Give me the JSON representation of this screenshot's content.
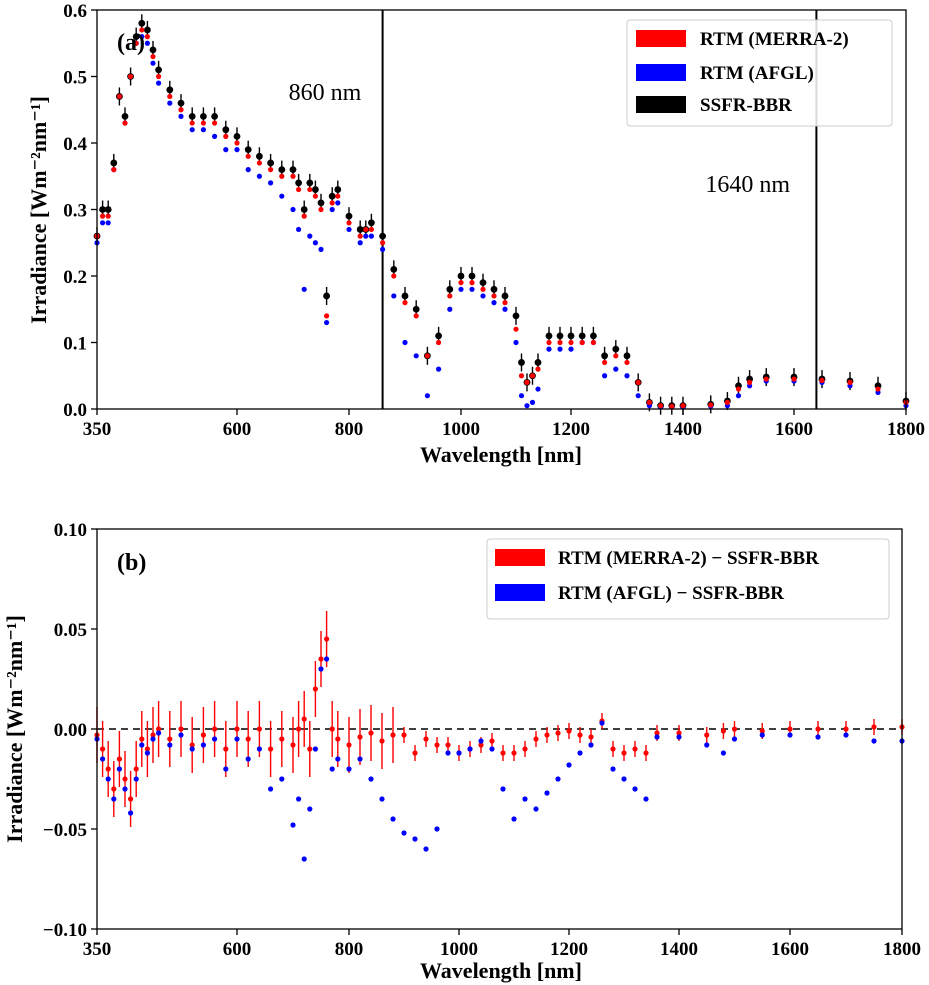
{
  "chart_data": [
    {
      "panel_label": "(a)",
      "type": "scatter",
      "xlabel": "Wavelength [nm]",
      "ylabel": "Irradiance [Wm⁻²nm⁻¹]",
      "xlim": [
        350,
        1800
      ],
      "ylim": [
        0.0,
        0.6
      ],
      "x_ticks": [
        "350",
        "600",
        "800",
        "1000",
        "1200",
        "1400",
        "1600",
        "1800"
      ],
      "y_ticks": [
        "0.0",
        "0.1",
        "0.2",
        "0.3",
        "0.4",
        "0.5",
        "0.6"
      ],
      "legend_position": "top-right",
      "vlines": [
        {
          "x": 860,
          "label": "860 nm"
        },
        {
          "x": 1640,
          "label": "1640 nm"
        }
      ],
      "series": [
        {
          "name": "RTM (MERRA-2)",
          "color": "#ff0000",
          "x": [
            350,
            360,
            370,
            380,
            390,
            400,
            410,
            420,
            430,
            440,
            450,
            460,
            480,
            500,
            520,
            540,
            560,
            580,
            600,
            620,
            640,
            660,
            680,
            700,
            710,
            720,
            730,
            740,
            750,
            760,
            770,
            780,
            800,
            820,
            830,
            840,
            860,
            880,
            900,
            920,
            940,
            960,
            980,
            1000,
            1020,
            1040,
            1060,
            1080,
            1100,
            1110,
            1120,
            1130,
            1140,
            1160,
            1180,
            1200,
            1220,
            1240,
            1260,
            1280,
            1300,
            1320,
            1340,
            1360,
            1380,
            1400,
            1450,
            1480,
            1500,
            1520,
            1550,
            1600,
            1650,
            1700,
            1750,
            1800
          ],
          "y": [
            0.26,
            0.29,
            0.29,
            0.36,
            0.47,
            0.43,
            0.5,
            0.55,
            0.57,
            0.56,
            0.53,
            0.5,
            0.47,
            0.45,
            0.43,
            0.43,
            0.43,
            0.41,
            0.4,
            0.38,
            0.37,
            0.36,
            0.35,
            0.35,
            0.33,
            0.29,
            0.33,
            0.32,
            0.3,
            0.14,
            0.31,
            0.32,
            0.28,
            0.26,
            0.27,
            0.27,
            0.25,
            0.2,
            0.16,
            0.14,
            0.08,
            0.1,
            0.17,
            0.19,
            0.19,
            0.18,
            0.17,
            0.16,
            0.12,
            0.05,
            0.04,
            0.05,
            0.06,
            0.1,
            0.1,
            0.1,
            0.1,
            0.1,
            0.07,
            0.08,
            0.07,
            0.04,
            0.01,
            0.005,
            0.004,
            0.005,
            0.006,
            0.01,
            0.03,
            0.04,
            0.045,
            0.045,
            0.043,
            0.04,
            0.03,
            0.01
          ]
        },
        {
          "name": "RTM (AFGL)",
          "color": "#0000ff",
          "x": [
            350,
            360,
            370,
            380,
            390,
            400,
            410,
            420,
            430,
            440,
            450,
            460,
            480,
            500,
            520,
            540,
            560,
            580,
            600,
            620,
            640,
            660,
            680,
            700,
            710,
            720,
            730,
            740,
            750,
            760,
            770,
            780,
            800,
            820,
            830,
            840,
            860,
            880,
            900,
            920,
            940,
            960,
            980,
            1000,
            1020,
            1040,
            1060,
            1080,
            1100,
            1110,
            1120,
            1130,
            1140,
            1160,
            1180,
            1200,
            1220,
            1240,
            1260,
            1280,
            1300,
            1320,
            1340,
            1360,
            1380,
            1400,
            1450,
            1480,
            1500,
            1520,
            1550,
            1600,
            1650,
            1700,
            1750,
            1800
          ],
          "y": [
            0.25,
            0.28,
            0.28,
            0.36,
            0.47,
            0.43,
            0.5,
            0.55,
            0.56,
            0.55,
            0.52,
            0.49,
            0.46,
            0.44,
            0.42,
            0.42,
            0.41,
            0.39,
            0.39,
            0.36,
            0.35,
            0.34,
            0.32,
            0.3,
            0.27,
            0.18,
            0.26,
            0.25,
            0.24,
            0.13,
            0.3,
            0.31,
            0.27,
            0.25,
            0.26,
            0.26,
            0.24,
            0.17,
            0.1,
            0.08,
            0.02,
            0.06,
            0.15,
            0.18,
            0.18,
            0.17,
            0.16,
            0.15,
            0.1,
            0.02,
            0.005,
            0.01,
            0.03,
            0.09,
            0.09,
            0.09,
            0.1,
            0.1,
            0.05,
            0.06,
            0.05,
            0.02,
            0.005,
            0.003,
            0.003,
            0.003,
            0.004,
            0.005,
            0.02,
            0.035,
            0.042,
            0.042,
            0.04,
            0.035,
            0.025,
            0.005
          ]
        },
        {
          "name": "SSFR-BBR",
          "color": "#000000",
          "x": [
            350,
            360,
            370,
            380,
            390,
            400,
            410,
            420,
            430,
            440,
            450,
            460,
            480,
            500,
            520,
            540,
            560,
            580,
            600,
            620,
            640,
            660,
            680,
            700,
            710,
            720,
            730,
            740,
            750,
            760,
            770,
            780,
            800,
            820,
            830,
            840,
            860,
            880,
            900,
            920,
            940,
            960,
            980,
            1000,
            1020,
            1040,
            1060,
            1080,
            1100,
            1110,
            1120,
            1130,
            1140,
            1160,
            1180,
            1200,
            1220,
            1240,
            1260,
            1280,
            1300,
            1320,
            1340,
            1360,
            1380,
            1400,
            1450,
            1480,
            1500,
            1520,
            1550,
            1600,
            1650,
            1700,
            1750,
            1800
          ],
          "y": [
            0.26,
            0.3,
            0.3,
            0.37,
            0.47,
            0.44,
            0.5,
            0.56,
            0.58,
            0.57,
            0.54,
            0.51,
            0.48,
            0.46,
            0.44,
            0.44,
            0.44,
            0.42,
            0.41,
            0.39,
            0.38,
            0.37,
            0.36,
            0.36,
            0.34,
            0.3,
            0.34,
            0.33,
            0.31,
            0.17,
            0.32,
            0.33,
            0.29,
            0.27,
            0.27,
            0.28,
            0.26,
            0.21,
            0.17,
            0.15,
            0.08,
            0.11,
            0.18,
            0.2,
            0.2,
            0.19,
            0.18,
            0.17,
            0.14,
            0.07,
            0.04,
            0.05,
            0.07,
            0.11,
            0.11,
            0.11,
            0.11,
            0.11,
            0.08,
            0.09,
            0.08,
            0.04,
            0.01,
            0.005,
            0.005,
            0.005,
            0.007,
            0.012,
            0.035,
            0.045,
            0.048,
            0.048,
            0.045,
            0.042,
            0.035,
            0.012
          ]
        }
      ]
    },
    {
      "panel_label": "(b)",
      "type": "scatter",
      "xlabel": "Wavelength [nm]",
      "ylabel": "Irradiance [Wm⁻²nm⁻¹]",
      "xlim": [
        350,
        1800
      ],
      "ylim": [
        -0.1,
        0.1
      ],
      "x_ticks": [
        "350",
        "600",
        "800",
        "1000",
        "1200",
        "1400",
        "1600",
        "1800"
      ],
      "y_ticks": [
        "−0.10",
        "−0.05",
        "0.00",
        "0.05",
        "0.10"
      ],
      "legend_position": "top-right",
      "hline": {
        "y": 0.0,
        "style": "dashed"
      },
      "series": [
        {
          "name": "RTM (MERRA-2) − SSFR-BBR",
          "color": "#ff0000",
          "x": [
            350,
            360,
            370,
            380,
            390,
            400,
            410,
            420,
            430,
            440,
            450,
            460,
            480,
            500,
            520,
            540,
            560,
            580,
            600,
            620,
            640,
            660,
            680,
            700,
            710,
            720,
            730,
            740,
            750,
            760,
            770,
            780,
            800,
            820,
            840,
            860,
            880,
            900,
            920,
            940,
            960,
            980,
            1000,
            1020,
            1040,
            1060,
            1080,
            1100,
            1120,
            1140,
            1160,
            1180,
            1200,
            1220,
            1240,
            1260,
            1280,
            1300,
            1320,
            1340,
            1360,
            1400,
            1450,
            1480,
            1500,
            1550,
            1600,
            1650,
            1700,
            1750,
            1800
          ],
          "y": [
            -0.003,
            -0.01,
            -0.02,
            -0.03,
            -0.015,
            -0.025,
            -0.035,
            -0.02,
            -0.005,
            -0.01,
            -0.003,
            0.0,
            -0.005,
            0.0,
            -0.008,
            -0.003,
            0.0,
            -0.01,
            0.0,
            -0.005,
            0.0,
            -0.01,
            -0.005,
            -0.008,
            0.0,
            0.005,
            -0.01,
            0.02,
            0.035,
            0.045,
            0.0,
            -0.005,
            -0.008,
            -0.004,
            -0.002,
            -0.006,
            -0.003,
            -0.003,
            -0.012,
            -0.005,
            -0.008,
            -0.008,
            -0.012,
            -0.01,
            -0.008,
            -0.006,
            -0.012,
            -0.012,
            -0.01,
            -0.005,
            -0.003,
            -0.002,
            -0.001,
            -0.003,
            -0.004,
            0.004,
            -0.01,
            -0.012,
            -0.01,
            -0.012,
            -0.002,
            -0.002,
            -0.003,
            -0.001,
            0.0,
            -0.001,
            0.0,
            0.0,
            0.0,
            0.001,
            0.001
          ]
        },
        {
          "name": "RTM (AFGL) − SSFR-BBR",
          "color": "#0000ff",
          "x": [
            350,
            360,
            370,
            380,
            390,
            400,
            410,
            420,
            430,
            440,
            450,
            460,
            480,
            500,
            520,
            540,
            560,
            580,
            600,
            620,
            640,
            660,
            680,
            700,
            710,
            720,
            730,
            740,
            750,
            760,
            770,
            780,
            800,
            820,
            840,
            860,
            880,
            900,
            920,
            940,
            960,
            980,
            1000,
            1020,
            1040,
            1060,
            1080,
            1100,
            1120,
            1140,
            1160,
            1180,
            1200,
            1220,
            1240,
            1260,
            1280,
            1300,
            1320,
            1340,
            1360,
            1400,
            1450,
            1480,
            1500,
            1550,
            1600,
            1650,
            1700,
            1750,
            1800
          ],
          "y": [
            -0.005,
            -0.015,
            -0.025,
            -0.035,
            -0.02,
            -0.03,
            -0.042,
            -0.025,
            -0.008,
            -0.012,
            -0.005,
            -0.002,
            -0.008,
            -0.003,
            -0.01,
            -0.008,
            -0.005,
            -0.02,
            -0.005,
            -0.015,
            -0.01,
            -0.03,
            -0.025,
            -0.048,
            -0.035,
            -0.065,
            -0.04,
            -0.01,
            0.03,
            0.035,
            -0.02,
            -0.015,
            -0.02,
            -0.015,
            -0.025,
            -0.035,
            -0.045,
            -0.052,
            -0.055,
            -0.06,
            -0.05,
            -0.012,
            -0.012,
            -0.01,
            -0.006,
            -0.01,
            -0.03,
            -0.045,
            -0.035,
            -0.04,
            -0.032,
            -0.025,
            -0.018,
            -0.012,
            -0.008,
            0.003,
            -0.02,
            -0.025,
            -0.03,
            -0.035,
            -0.004,
            -0.004,
            -0.008,
            -0.012,
            -0.005,
            -0.003,
            -0.003,
            -0.004,
            -0.003,
            -0.006,
            -0.006
          ]
        }
      ]
    }
  ]
}
